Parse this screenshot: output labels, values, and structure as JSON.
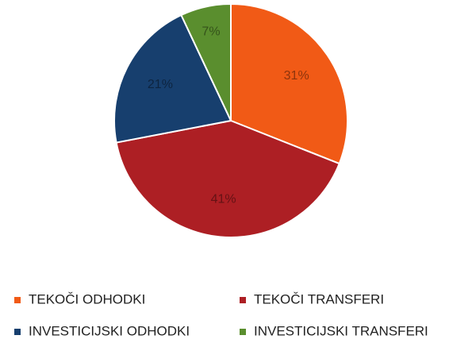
{
  "chart_data": {
    "type": "pie",
    "categories": [
      "TEKOČI ODHODKI",
      "TEKOČI TRANSFERI",
      "INVESTICIJSKI ODHODKI",
      "INVESTICIJSKI TRANSFERI"
    ],
    "values": [
      31,
      41,
      21,
      7
    ],
    "value_labels": [
      "31%",
      "41%",
      "21%",
      "7%"
    ],
    "colors": [
      "#f15a16",
      "#ad1f24",
      "#173f6e",
      "#5a8e2e"
    ]
  }
}
